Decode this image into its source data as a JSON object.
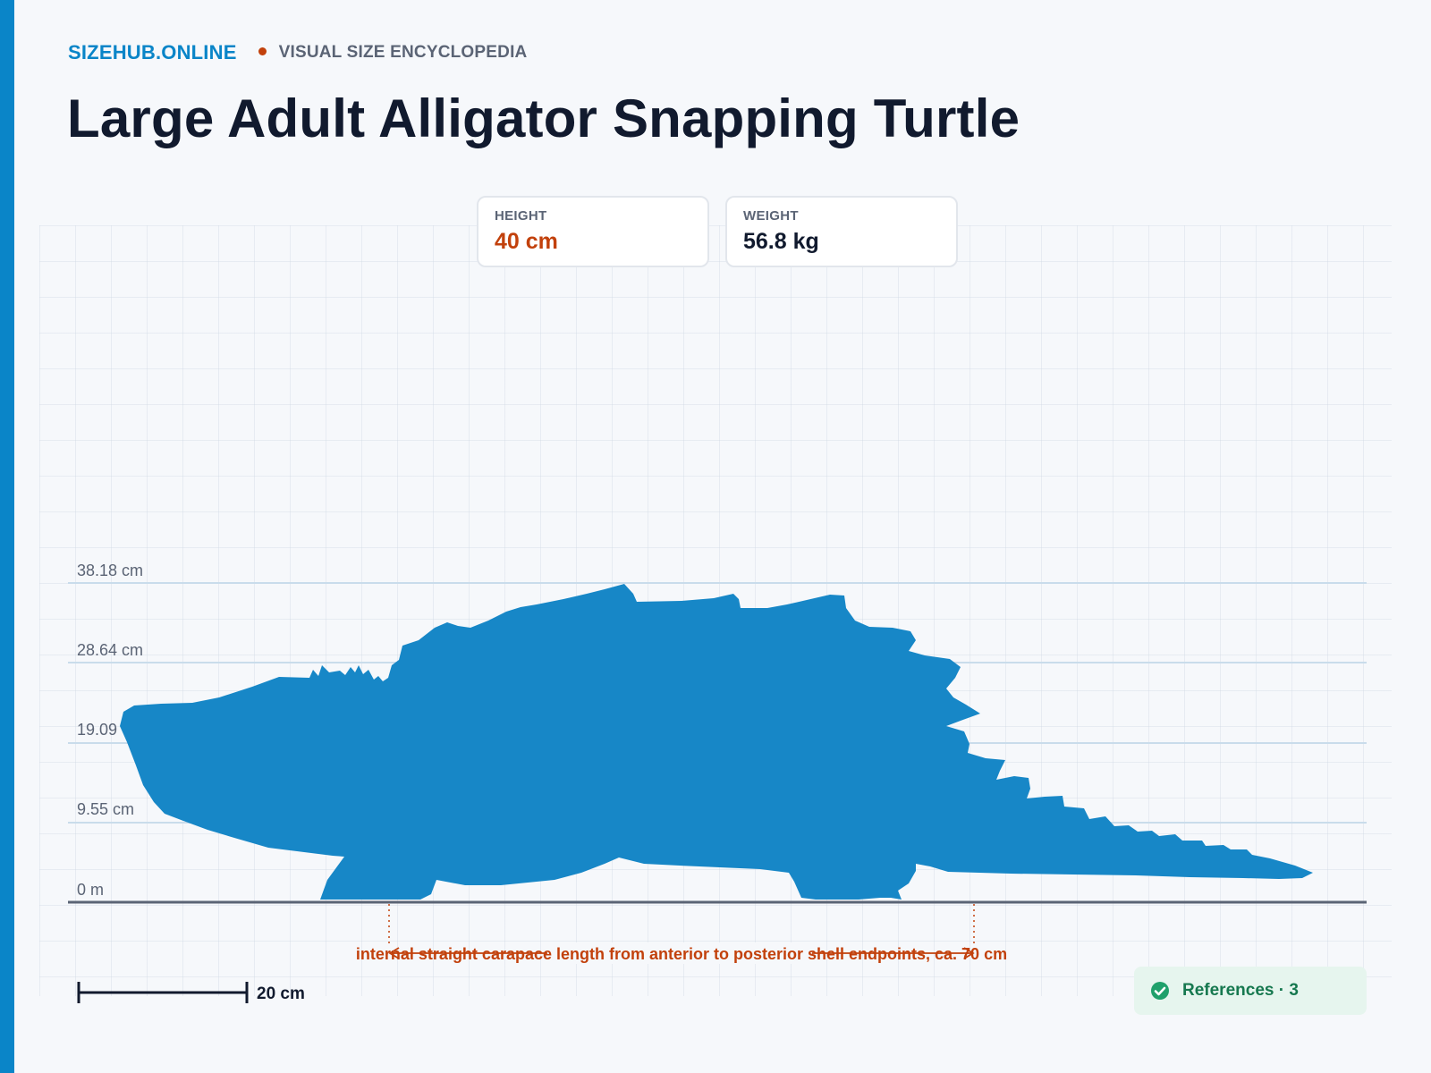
{
  "brand": {
    "name": "SIZEHUB.ONLINE",
    "tagline": "VISUAL SIZE ENCYCLOPEDIA"
  },
  "title": "Large Adult Alligator Snapping Turtle",
  "stats": [
    {
      "label": "HEIGHT",
      "value": "40 cm"
    },
    {
      "label": "WEIGHT",
      "value": "56.8 kg"
    }
  ],
  "height_axis": {
    "ticks": [
      {
        "label": "0 m",
        "value_cm": 0
      },
      {
        "label": "9.55 cm",
        "value_cm": 9.55
      },
      {
        "label": "19.09",
        "value_cm": 19.09
      },
      {
        "label": "28.64 cm",
        "value_cm": 28.64
      },
      {
        "label": "38.18 cm",
        "value_cm": 38.18
      }
    ]
  },
  "measurement": {
    "label": "internal straight carapace length from anterior to posterior shell endpoints, ca. 70 cm",
    "value_cm": 70
  },
  "scale_bar": {
    "label": "20 cm"
  },
  "references": {
    "label": "References · 3",
    "count": 3
  },
  "colors": {
    "accent": "#0a85c8",
    "silhouette": "#1787c7",
    "highlight": "#c2410c",
    "success": "#16784f"
  },
  "icons": {
    "references": "check-circle-icon",
    "brand_separator": "dot-icon"
  }
}
